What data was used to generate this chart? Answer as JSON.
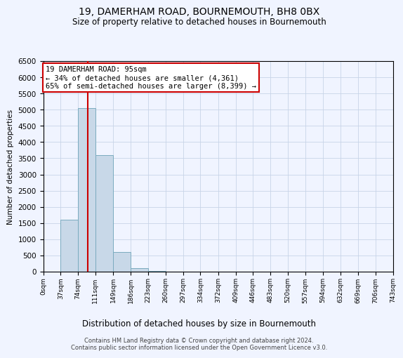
{
  "title": "19, DAMERHAM ROAD, BOURNEMOUTH, BH8 0BX",
  "subtitle": "Size of property relative to detached houses in Bournemouth",
  "xlabel": "Distribution of detached houses by size in Bournemouth",
  "ylabel": "Number of detached properties",
  "bin_edges": [
    0,
    37,
    74,
    111,
    149,
    186,
    223,
    260,
    297,
    334,
    372,
    409,
    446,
    483,
    520,
    557,
    594,
    632,
    669,
    706,
    743
  ],
  "bar_heights": [
    0,
    1600,
    5050,
    3600,
    600,
    100,
    30,
    10,
    5,
    3,
    2,
    1,
    1,
    0,
    0,
    0,
    0,
    0,
    0,
    0
  ],
  "bar_color": "#c8d8e8",
  "bar_edgecolor": "#7aabbf",
  "property_size": 95,
  "vline_color": "#cc0000",
  "annotation_text": "19 DAMERHAM ROAD: 95sqm\n← 34% of detached houses are smaller (4,361)\n65% of semi-detached houses are larger (8,399) →",
  "annotation_boxcolor": "white",
  "annotation_edgecolor": "#cc0000",
  "ylim": [
    0,
    6500
  ],
  "yticks": [
    0,
    500,
    1000,
    1500,
    2000,
    2500,
    3000,
    3500,
    4000,
    4500,
    5000,
    5500,
    6000,
    6500
  ],
  "footnote1": "Contains HM Land Registry data © Crown copyright and database right 2024.",
  "footnote2": "Contains public sector information licensed under the Open Government Licence v3.0.",
  "bg_color": "#f0f4ff",
  "grid_color": "#c8d4e8"
}
